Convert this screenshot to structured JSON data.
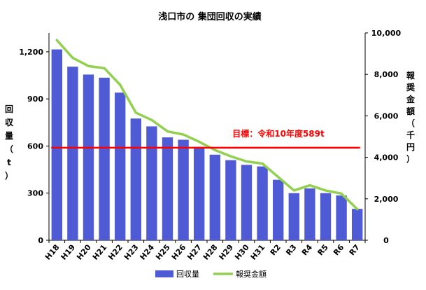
{
  "chart_data": {
    "type": "bar",
    "title": "浅口市の 集団回収の実績",
    "categories": [
      "H18",
      "H19",
      "H20",
      "H21",
      "H22",
      "H23",
      "H24",
      "H25",
      "H26",
      "H27",
      "H28",
      "H29",
      "H30",
      "H31",
      "R2",
      "R3",
      "R4",
      "R5",
      "R6",
      "R7"
    ],
    "ylabel": "回収量（t）",
    "y2label": "報奨金額（千円）",
    "ylim": [
      0,
      1320
    ],
    "y_ticks": [
      0,
      300,
      600,
      900,
      1200
    ],
    "y_tick_labels": [
      "0",
      "300",
      "600",
      "900",
      "1,200"
    ],
    "y2lim": [
      0,
      10000
    ],
    "y2_ticks": [
      0,
      2000,
      4000,
      6000,
      8000,
      10000
    ],
    "y2_tick_labels": [
      "0",
      "2,000",
      "4,000",
      "6,000",
      "8,000",
      "10,000"
    ],
    "grid": false,
    "legend_position": "bottom",
    "series": [
      {
        "name": "回収量",
        "type": "bar",
        "axis": "left",
        "color": "#4f5bd5",
        "values": [
          1215,
          1105,
          1055,
          1035,
          940,
          775,
          725,
          655,
          640,
          595,
          545,
          510,
          480,
          470,
          385,
          300,
          330,
          300,
          285,
          200
        ]
      },
      {
        "name": "報奨金額",
        "type": "line",
        "axis": "right",
        "color": "#92d050",
        "values": [
          9650,
          8800,
          8400,
          8300,
          7500,
          6150,
          5800,
          5250,
          5100,
          4750,
          4350,
          4050,
          3800,
          3700,
          3050,
          2400,
          2650,
          2400,
          2250,
          1500
        ]
      }
    ],
    "target": {
      "label": "目標：令和10年度589t",
      "value": 589,
      "axis": "left",
      "color": "#ff0000"
    }
  }
}
